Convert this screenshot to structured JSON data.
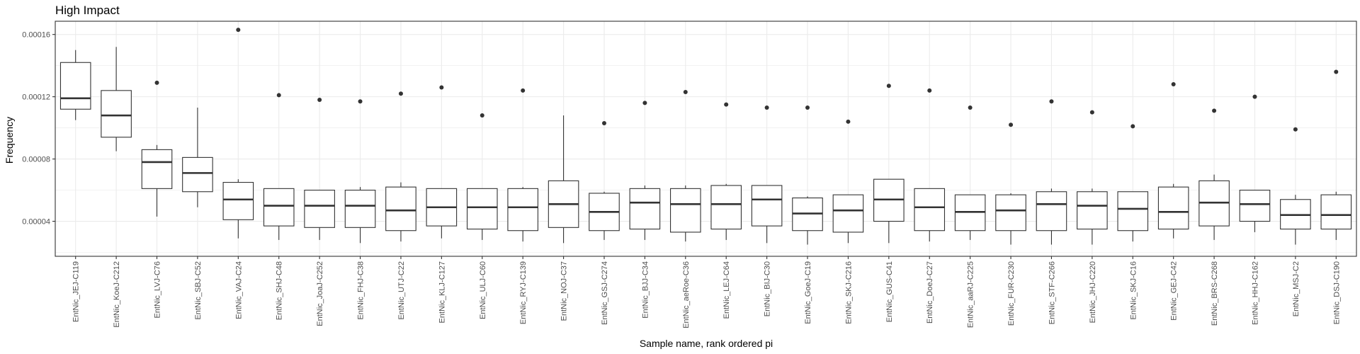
{
  "chart_data": {
    "type": "boxplot",
    "title": "High Impact",
    "xlabel": "Sample name, rank ordered pi",
    "ylabel": "Frequency",
    "ylim": [
      1.75e-05,
      0.0001685
    ],
    "yticks": [
      4e-05,
      8e-05,
      0.00012,
      0.00016
    ],
    "ytick_labels": [
      "0.00004",
      "0.00008",
      "0.00012",
      "0.00016"
    ],
    "grid": true,
    "colors": {
      "box_fill": "#ffffff",
      "box_stroke": "#333333",
      "grid": "#ebebeb",
      "panel_border": "#333333",
      "outlier": "#333333"
    },
    "categories": [
      "EntNic_JEJ-C119",
      "EntNic_KoeJ-C212",
      "EntNic_LVJ-C76",
      "EntNic_SBJ-C52",
      "EntNic_VAJ-C24",
      "EntNic_SHJ-C48",
      "EntNic_JoaJ-C252",
      "EntNic_FHJ-C38",
      "EntNic_UTJ-C22",
      "EntNic_KLJ-C127",
      "EntNic_ULJ-C60",
      "EntNic_RYJ-C139",
      "EntNic_NOJ-C37",
      "EntNic_GSJ-C274",
      "EntNic_BJJ-C34",
      "EntNic_aeRoe-C36",
      "EntNic_LEJ-C64",
      "EntNic_BIJ-C30",
      "EntNic_GoeJ-C19",
      "EntNic_SKJ-C216",
      "EntNic_GUS-C41",
      "EntNic_DoeJ-C27",
      "EntNic_aaRJ-C225",
      "EntNic_FUR-C230",
      "EntNic_STF-C266",
      "EntNic_JHJ-C220",
      "EntNic_SKJ-C16",
      "EntNic_GEJ-C42",
      "EntNic_BRS-C268",
      "EntNic_HHJ-C162",
      "EntNic_MSJ-C2",
      "EntNic_DSJ-C190"
    ],
    "boxes": [
      {
        "min": 0.000105,
        "q1": 0.000112,
        "median": 0.000119,
        "q3": 0.000142,
        "max": 0.00015,
        "outliers": []
      },
      {
        "min": 8.5e-05,
        "q1": 9.4e-05,
        "median": 0.000108,
        "q3": 0.000124,
        "max": 0.000152,
        "outliers": []
      },
      {
        "min": 4.3e-05,
        "q1": 6.1e-05,
        "median": 7.8e-05,
        "q3": 8.6e-05,
        "max": 8.9e-05,
        "outliers": [
          0.000129
        ]
      },
      {
        "min": 4.9e-05,
        "q1": 5.9e-05,
        "median": 7.1e-05,
        "q3": 8.1e-05,
        "max": 0.000113,
        "outliers": []
      },
      {
        "min": 2.9e-05,
        "q1": 4.1e-05,
        "median": 5.4e-05,
        "q3": 6.5e-05,
        "max": 6.7e-05,
        "outliers": [
          0.000163
        ]
      },
      {
        "min": 2.8e-05,
        "q1": 3.7e-05,
        "median": 5e-05,
        "q3": 6.1e-05,
        "max": 6.1e-05,
        "outliers": [
          0.000121
        ]
      },
      {
        "min": 2.8e-05,
        "q1": 3.6e-05,
        "median": 5e-05,
        "q3": 6e-05,
        "max": 6e-05,
        "outliers": [
          0.000118
        ]
      },
      {
        "min": 2.6e-05,
        "q1": 3.6e-05,
        "median": 5e-05,
        "q3": 6e-05,
        "max": 6.2e-05,
        "outliers": [
          0.000117
        ]
      },
      {
        "min": 2.7e-05,
        "q1": 3.4e-05,
        "median": 4.7e-05,
        "q3": 6.2e-05,
        "max": 6.5e-05,
        "outliers": [
          0.000122
        ]
      },
      {
        "min": 2.9e-05,
        "q1": 3.7e-05,
        "median": 4.9e-05,
        "q3": 6.1e-05,
        "max": 6.1e-05,
        "outliers": [
          0.000126
        ]
      },
      {
        "min": 2.8e-05,
        "q1": 3.5e-05,
        "median": 4.9e-05,
        "q3": 6.1e-05,
        "max": 6.1e-05,
        "outliers": [
          0.000108
        ]
      },
      {
        "min": 2.7e-05,
        "q1": 3.4e-05,
        "median": 4.9e-05,
        "q3": 6.1e-05,
        "max": 6.2e-05,
        "outliers": [
          0.000124
        ]
      },
      {
        "min": 2.6e-05,
        "q1": 3.6e-05,
        "median": 5.1e-05,
        "q3": 6.6e-05,
        "max": 0.000108,
        "outliers": []
      },
      {
        "min": 2.8e-05,
        "q1": 3.4e-05,
        "median": 4.6e-05,
        "q3": 5.8e-05,
        "max": 5.9e-05,
        "outliers": [
          0.000103
        ]
      },
      {
        "min": 2.8e-05,
        "q1": 3.5e-05,
        "median": 5.2e-05,
        "q3": 6.1e-05,
        "max": 6.3e-05,
        "outliers": [
          0.000116
        ]
      },
      {
        "min": 2.7e-05,
        "q1": 3.3e-05,
        "median": 5.1e-05,
        "q3": 6.1e-05,
        "max": 6.3e-05,
        "outliers": [
          0.000123
        ]
      },
      {
        "min": 2.8e-05,
        "q1": 3.5e-05,
        "median": 5.1e-05,
        "q3": 6.3e-05,
        "max": 6.4e-05,
        "outliers": [
          0.000115
        ]
      },
      {
        "min": 2.6e-05,
        "q1": 3.7e-05,
        "median": 5.4e-05,
        "q3": 6.3e-05,
        "max": 6.3e-05,
        "outliers": [
          0.000113
        ]
      },
      {
        "min": 2.5e-05,
        "q1": 3.4e-05,
        "median": 4.5e-05,
        "q3": 5.5e-05,
        "max": 5.6e-05,
        "outliers": [
          0.000113
        ]
      },
      {
        "min": 2.6e-05,
        "q1": 3.3e-05,
        "median": 4.7e-05,
        "q3": 5.7e-05,
        "max": 5.7e-05,
        "outliers": [
          0.000104
        ]
      },
      {
        "min": 2.6e-05,
        "q1": 4e-05,
        "median": 5.4e-05,
        "q3": 6.7e-05,
        "max": 6.7e-05,
        "outliers": [
          0.000127
        ]
      },
      {
        "min": 2.7e-05,
        "q1": 3.4e-05,
        "median": 4.9e-05,
        "q3": 6.1e-05,
        "max": 6.1e-05,
        "outliers": [
          0.000124
        ]
      },
      {
        "min": 2.8e-05,
        "q1": 3.4e-05,
        "median": 4.6e-05,
        "q3": 5.7e-05,
        "max": 5.7e-05,
        "outliers": [
          0.000113
        ]
      },
      {
        "min": 2.5e-05,
        "q1": 3.4e-05,
        "median": 4.7e-05,
        "q3": 5.7e-05,
        "max": 5.8e-05,
        "outliers": [
          0.000102
        ]
      },
      {
        "min": 2.5e-05,
        "q1": 3.4e-05,
        "median": 5.1e-05,
        "q3": 5.9e-05,
        "max": 6.1e-05,
        "outliers": [
          0.000117
        ]
      },
      {
        "min": 2.5e-05,
        "q1": 3.5e-05,
        "median": 5e-05,
        "q3": 5.9e-05,
        "max": 6.1e-05,
        "outliers": [
          0.00011
        ]
      },
      {
        "min": 2.7e-05,
        "q1": 3.4e-05,
        "median": 4.8e-05,
        "q3": 5.9e-05,
        "max": 5.9e-05,
        "outliers": [
          0.000101
        ]
      },
      {
        "min": 2.9e-05,
        "q1": 3.5e-05,
        "median": 4.6e-05,
        "q3": 6.2e-05,
        "max": 6.4e-05,
        "outliers": [
          0.000128
        ]
      },
      {
        "min": 2.8e-05,
        "q1": 3.7e-05,
        "median": 5.2e-05,
        "q3": 6.6e-05,
        "max": 7e-05,
        "outliers": [
          0.000111
        ]
      },
      {
        "min": 3.3e-05,
        "q1": 4e-05,
        "median": 5.1e-05,
        "q3": 6e-05,
        "max": 6e-05,
        "outliers": [
          0.00012
        ]
      },
      {
        "min": 2.5e-05,
        "q1": 3.5e-05,
        "median": 4.4e-05,
        "q3": 5.4e-05,
        "max": 5.7e-05,
        "outliers": [
          9.9e-05
        ]
      },
      {
        "min": 2.8e-05,
        "q1": 3.5e-05,
        "median": 4.4e-05,
        "q3": 5.7e-05,
        "max": 5.9e-05,
        "outliers": [
          0.000136
        ]
      }
    ]
  }
}
